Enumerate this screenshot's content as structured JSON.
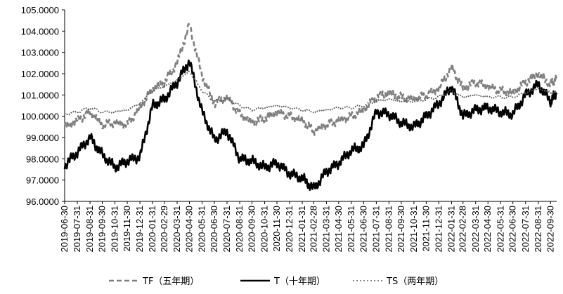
{
  "chart_data": {
    "type": "line",
    "title": "",
    "xlabel": "",
    "ylabel": "",
    "ylim": [
      96,
      105
    ],
    "y_ticks": [
      "96.0000",
      "97.0000",
      "98.0000",
      "99.0000",
      "100.0000",
      "101.0000",
      "102.0000",
      "103.0000",
      "104.0000",
      "105.0000"
    ],
    "x_tick_labels": [
      "2019-06-30",
      "2019-07-31",
      "2019-08-31",
      "2019-09-30",
      "2019-10-31",
      "2019-11-30",
      "2019-12-31",
      "2020-01-31",
      "2020-02-29",
      "2020-03-31",
      "2020-04-30",
      "2020-05-31",
      "2020-06-30",
      "2020-07-31",
      "2020-08-31",
      "2020-09-30",
      "2020-10-31",
      "2020-11-30",
      "2020-12-31",
      "2021-01-31",
      "2021-02-28",
      "2021-03-31",
      "2021-04-30",
      "2021-05-31",
      "2021-06-30",
      "2021-07-31",
      "2021-08-31",
      "2021-09-30",
      "2021-10-31",
      "2021-11-30",
      "2021-12-31",
      "2022-01-31",
      "2022-02-28",
      "2022-03-31",
      "2022-04-30",
      "2022-05-31",
      "2022-06-30",
      "2022-07-31",
      "2022-08-31",
      "2022-09-30"
    ],
    "x": [
      "2019-06-30",
      "2019-07-31",
      "2019-08-31",
      "2019-09-30",
      "2019-10-31",
      "2019-11-30",
      "2019-12-31",
      "2020-01-31",
      "2020-02-29",
      "2020-03-31",
      "2020-04-30",
      "2020-05-31",
      "2020-06-30",
      "2020-07-31",
      "2020-08-31",
      "2020-09-30",
      "2020-10-31",
      "2020-11-30",
      "2020-12-31",
      "2021-01-31",
      "2021-02-28",
      "2021-03-31",
      "2021-04-30",
      "2021-05-31",
      "2021-06-30",
      "2021-07-31",
      "2021-08-31",
      "2021-09-30",
      "2021-10-31",
      "2021-11-30",
      "2021-12-31",
      "2022-01-31",
      "2022-02-28",
      "2022-03-31",
      "2022-04-30",
      "2022-05-31",
      "2022-06-30",
      "2022-07-31",
      "2022-08-31",
      "2022-09-30",
      "2022-10-15"
    ],
    "legend_position": "bottom",
    "grid": false,
    "series": [
      {
        "name": "TF（五年期）",
        "style": "dashed",
        "color": "#7f7f7f",
        "values": [
          99.5,
          99.8,
          100.2,
          99.6,
          99.7,
          99.6,
          100.4,
          101.3,
          101.6,
          102.5,
          104.3,
          101.9,
          100.6,
          100.9,
          100.1,
          99.7,
          99.9,
          100.2,
          100.0,
          99.8,
          99.3,
          99.6,
          99.8,
          100.0,
          100.3,
          100.9,
          101.1,
          100.9,
          100.8,
          101.0,
          101.3,
          102.3,
          101.3,
          101.6,
          101.4,
          101.2,
          101.1,
          101.6,
          102.0,
          101.5,
          101.8
        ]
      },
      {
        "name": "T（十年期）",
        "style": "solid",
        "color": "#000000",
        "values": [
          97.7,
          98.3,
          99.0,
          98.2,
          97.6,
          97.9,
          98.1,
          100.5,
          100.8,
          101.6,
          102.6,
          100.2,
          98.9,
          99.3,
          98.0,
          97.9,
          97.6,
          97.8,
          97.3,
          97.1,
          96.6,
          97.4,
          97.8,
          98.4,
          98.6,
          100.2,
          100.1,
          99.7,
          99.5,
          100.0,
          100.6,
          101.4,
          100.0,
          100.3,
          100.4,
          100.2,
          100.1,
          101.0,
          101.5,
          100.7,
          101.1
        ]
      },
      {
        "name": "TS（两年期）",
        "style": "dotted",
        "color": "#5a5a5a",
        "values": [
          100.1,
          100.2,
          100.4,
          100.2,
          100.2,
          100.3,
          100.6,
          101.2,
          101.4,
          101.7,
          102.1,
          101.2,
          100.7,
          100.8,
          100.5,
          100.3,
          100.4,
          100.5,
          100.4,
          100.3,
          100.2,
          100.3,
          100.4,
          100.4,
          100.5,
          100.7,
          100.8,
          100.7,
          100.7,
          100.8,
          100.9,
          101.2,
          100.9,
          101.0,
          100.9,
          100.9,
          100.9,
          101.1,
          101.3,
          101.1,
          101.2
        ]
      }
    ]
  }
}
